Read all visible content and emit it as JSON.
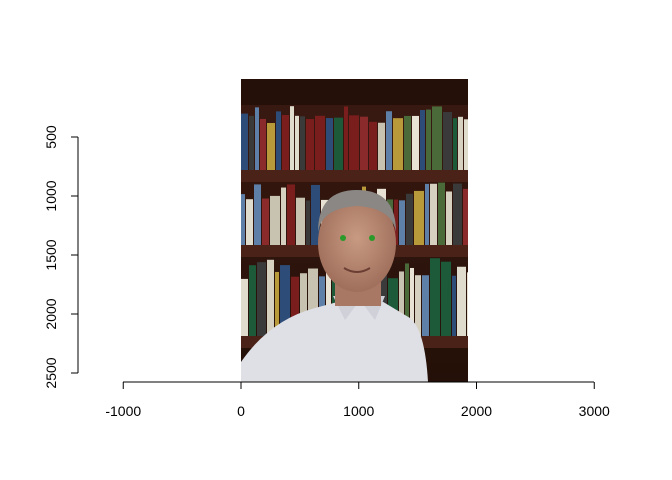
{
  "chart_data": {
    "type": "image-plot",
    "title": "",
    "xlabel": "",
    "ylabel": "",
    "x_ticks": [
      "-1000",
      "0",
      "1000",
      "2000",
      "3000"
    ],
    "y_ticks": [
      "500",
      "1000",
      "1500",
      "2000",
      "2500"
    ],
    "xlim": [
      -1000,
      3000
    ],
    "ylim": [
      500,
      2500
    ],
    "y_reversed": true,
    "raster_image": {
      "description_icon": "portrait-photo",
      "x_extent": [
        0,
        1920
      ],
      "y_extent": [
        0,
        2560
      ]
    },
    "annotations": [
      {
        "type": "points",
        "color": "#22aa22",
        "x": [
          880,
          1110
        ],
        "y": [
          1230,
          1230
        ]
      }
    ]
  }
}
